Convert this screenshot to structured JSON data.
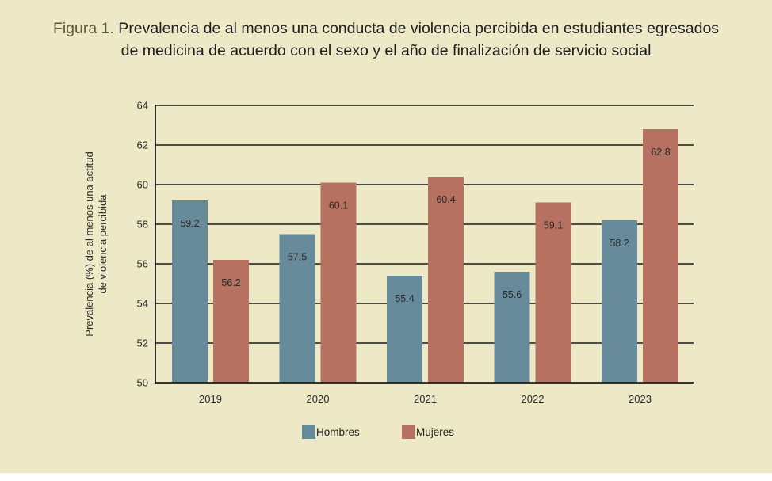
{
  "title": {
    "prefix": "Figura 1.",
    "line1": " Prevalencia de al menos una conducta de violencia percibida en estudiantes egresados",
    "line2": "de medicina de acuerdo con el sexo y el año de finalización de servicio social"
  },
  "colors": {
    "background": "#ede8c6",
    "hombres": "#678b9a",
    "mujeres": "#b77160",
    "grid": "#1a1a1a"
  },
  "chart_data": {
    "type": "bar",
    "title": "Prevalencia de al menos una conducta de violencia percibida en estudiantes egresados de medicina de acuerdo con el sexo y el año de finalización de servicio social",
    "xlabel": "",
    "ylabel_lines": [
      "Prevalencia (%) de al menos una actitud",
      "de violencia percibida"
    ],
    "categories": [
      "2019",
      "2020",
      "2021",
      "2022",
      "2023"
    ],
    "series": [
      {
        "name": "Hombres",
        "values": [
          59.2,
          57.5,
          55.4,
          55.6,
          58.2
        ],
        "labels": [
          "59.2",
          "57.5",
          "55.4",
          "55.6",
          "58.2"
        ]
      },
      {
        "name": "Mujeres",
        "values": [
          56.2,
          60.1,
          60.4,
          59.1,
          62.8
        ],
        "labels": [
          "56.2",
          "60.1",
          "60.4",
          "59.1",
          "62.8"
        ]
      }
    ],
    "ylim": [
      50,
      64
    ],
    "yticks": [
      "50",
      "52",
      "54",
      "56",
      "58",
      "60",
      "62",
      "64"
    ],
    "grid": true,
    "legend": "bottom-center"
  }
}
